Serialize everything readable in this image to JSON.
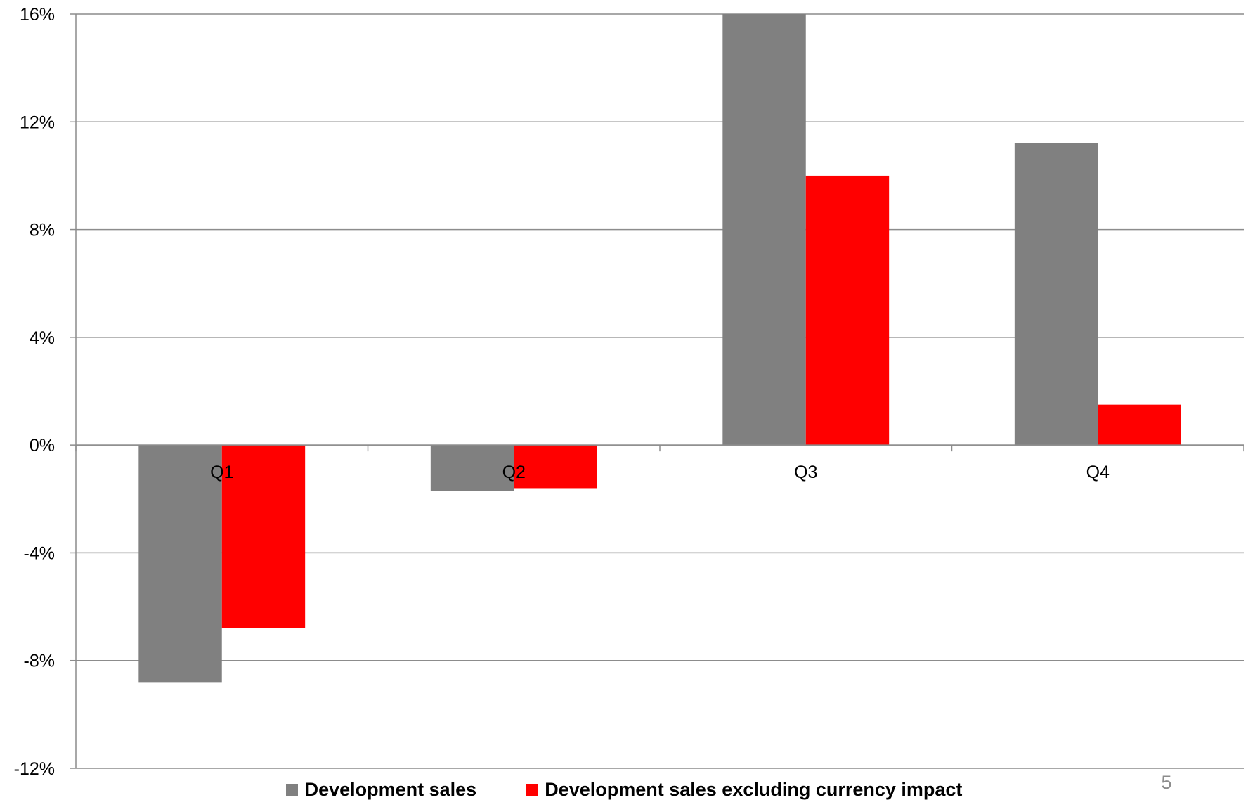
{
  "chart_data": {
    "type": "bar",
    "categories": [
      "Q1",
      "Q2",
      "Q3",
      "Q4"
    ],
    "series": [
      {
        "name": "Development sales",
        "color": "#808080",
        "values": [
          -8.8,
          -1.7,
          16.0,
          11.2
        ]
      },
      {
        "name": "Development sales excluding currency impact",
        "color": "#ff0000",
        "values": [
          -6.8,
          -1.6,
          10.0,
          1.5
        ]
      }
    ],
    "ylim": [
      -12,
      16
    ],
    "yticks": [
      -12,
      -8,
      -4,
      0,
      4,
      8,
      12,
      16
    ],
    "ytick_labels": [
      "-12%",
      "-8%",
      "-4%",
      "0%",
      "4%",
      "8%",
      "12%",
      "16%"
    ],
    "grid": true,
    "legend_position": "bottom",
    "title": "",
    "xlabel": "",
    "ylabel": ""
  },
  "page_number": "5"
}
